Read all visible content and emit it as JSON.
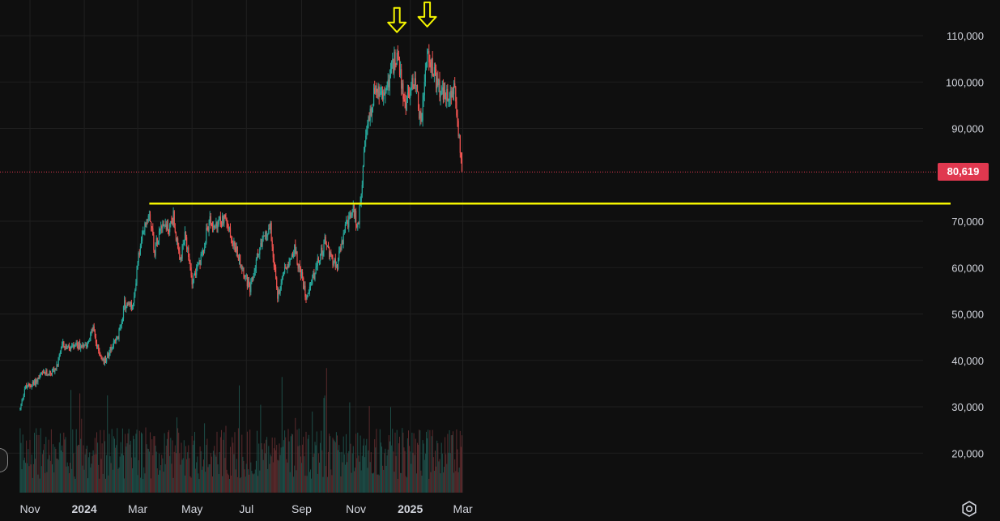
{
  "chart_data": {
    "type": "candlestick",
    "current_price": 80619,
    "current_price_label": "80,619",
    "ylim": [
      12000,
      116000
    ],
    "y_ticks": [
      {
        "value": 110000,
        "label": "110,000"
      },
      {
        "value": 100000,
        "label": "100,000"
      },
      {
        "value": 90000,
        "label": "90,000"
      },
      {
        "value": 70000,
        "label": "70,000"
      },
      {
        "value": 60000,
        "label": "60,000"
      },
      {
        "value": 50000,
        "label": "50,000"
      },
      {
        "value": 40000,
        "label": "40,000"
      },
      {
        "value": 30000,
        "label": "30,000"
      },
      {
        "value": 20000,
        "label": "20,000"
      }
    ],
    "x_ticks": [
      {
        "date": "2023-11-01",
        "label": "Nov",
        "bold": false
      },
      {
        "date": "2024-01-01",
        "label": "2024",
        "bold": true
      },
      {
        "date": "2024-03-01",
        "label": "Mar",
        "bold": false
      },
      {
        "date": "2024-05-01",
        "label": "May",
        "bold": false
      },
      {
        "date": "2024-07-01",
        "label": "Jul",
        "bold": false
      },
      {
        "date": "2024-09-01",
        "label": "Sep",
        "bold": false
      },
      {
        "date": "2024-11-01",
        "label": "Nov",
        "bold": false
      },
      {
        "date": "2025-01-01",
        "label": "2025",
        "bold": true
      },
      {
        "date": "2025-03-01",
        "label": "Mar",
        "bold": false
      }
    ],
    "price_path": [
      [
        "2023-10-21",
        29500
      ],
      [
        "2023-10-26",
        34000
      ],
      [
        "2023-11-05",
        35000
      ],
      [
        "2023-11-15",
        37000
      ],
      [
        "2023-11-25",
        37500
      ],
      [
        "2023-12-01",
        38500
      ],
      [
        "2023-12-08",
        43500
      ],
      [
        "2023-12-15",
        42500
      ],
      [
        "2023-12-25",
        43000
      ],
      [
        "2024-01-05",
        44000
      ],
      [
        "2024-01-11",
        47000
      ],
      [
        "2024-01-15",
        43000
      ],
      [
        "2024-01-23",
        39500
      ],
      [
        "2024-02-01",
        43000
      ],
      [
        "2024-02-08",
        45000
      ],
      [
        "2024-02-15",
        52000
      ],
      [
        "2024-02-25",
        51500
      ],
      [
        "2024-03-01",
        61500
      ],
      [
        "2024-03-08",
        68000
      ],
      [
        "2024-03-14",
        72500
      ],
      [
        "2024-03-20",
        63500
      ],
      [
        "2024-03-27",
        70000
      ],
      [
        "2024-04-05",
        68500
      ],
      [
        "2024-04-10",
        71000
      ],
      [
        "2024-04-17",
        61000
      ],
      [
        "2024-04-23",
        66500
      ],
      [
        "2024-05-01",
        57500
      ],
      [
        "2024-05-10",
        61000
      ],
      [
        "2024-05-20",
        70000
      ],
      [
        "2024-05-28",
        68500
      ],
      [
        "2024-06-06",
        71000
      ],
      [
        "2024-06-15",
        66000
      ],
      [
        "2024-06-25",
        61000
      ],
      [
        "2024-07-05",
        55000
      ],
      [
        "2024-07-15",
        64000
      ],
      [
        "2024-07-28",
        69000
      ],
      [
        "2024-08-05",
        53500
      ],
      [
        "2024-08-12",
        59500
      ],
      [
        "2024-08-24",
        64000
      ],
      [
        "2024-09-06",
        54000
      ],
      [
        "2024-09-15",
        58500
      ],
      [
        "2024-09-27",
        65500
      ],
      [
        "2024-10-10",
        60000
      ],
      [
        "2024-10-20",
        68500
      ],
      [
        "2024-10-29",
        72500
      ],
      [
        "2024-11-03",
        68500
      ],
      [
        "2024-11-12",
        88000
      ],
      [
        "2024-11-22",
        98500
      ],
      [
        "2024-12-01",
        96500
      ],
      [
        "2024-12-08",
        100500
      ],
      [
        "2024-12-17",
        106500
      ],
      [
        "2024-12-26",
        95000
      ],
      [
        "2025-01-06",
        101000
      ],
      [
        "2025-01-13",
        91000
      ],
      [
        "2025-01-20",
        106000
      ],
      [
        "2025-01-27",
        102000
      ],
      [
        "2025-02-03",
        98000
      ],
      [
        "2025-02-10",
        96500
      ],
      [
        "2025-02-20",
        98000
      ],
      [
        "2025-02-25",
        88000
      ],
      [
        "2025-02-28",
        80619
      ]
    ],
    "resistance_line": {
      "value": 73800,
      "start": "2024-03-14"
    },
    "markers": [
      {
        "type": "arrow-down",
        "date": "2024-12-17",
        "value": 108300
      },
      {
        "type": "arrow-down",
        "date": "2025-01-20",
        "value": 109500
      }
    ],
    "volume_ylim": [
      0,
      80000
    ],
    "colors": {
      "background": "#0f0f0f",
      "up": "#26a69a",
      "down": "#ef5350",
      "volume_up": "#1d4d47",
      "volume_down": "#5a2a2c",
      "grid": "#1f1f1f",
      "resistance": "#f5f500",
      "marker": "#f5f500",
      "current_price": "#e0384f",
      "axis_text": "#d1d4dc"
    },
    "grid": true
  },
  "ui": {
    "settings_icon": "settings-gear-icon"
  }
}
